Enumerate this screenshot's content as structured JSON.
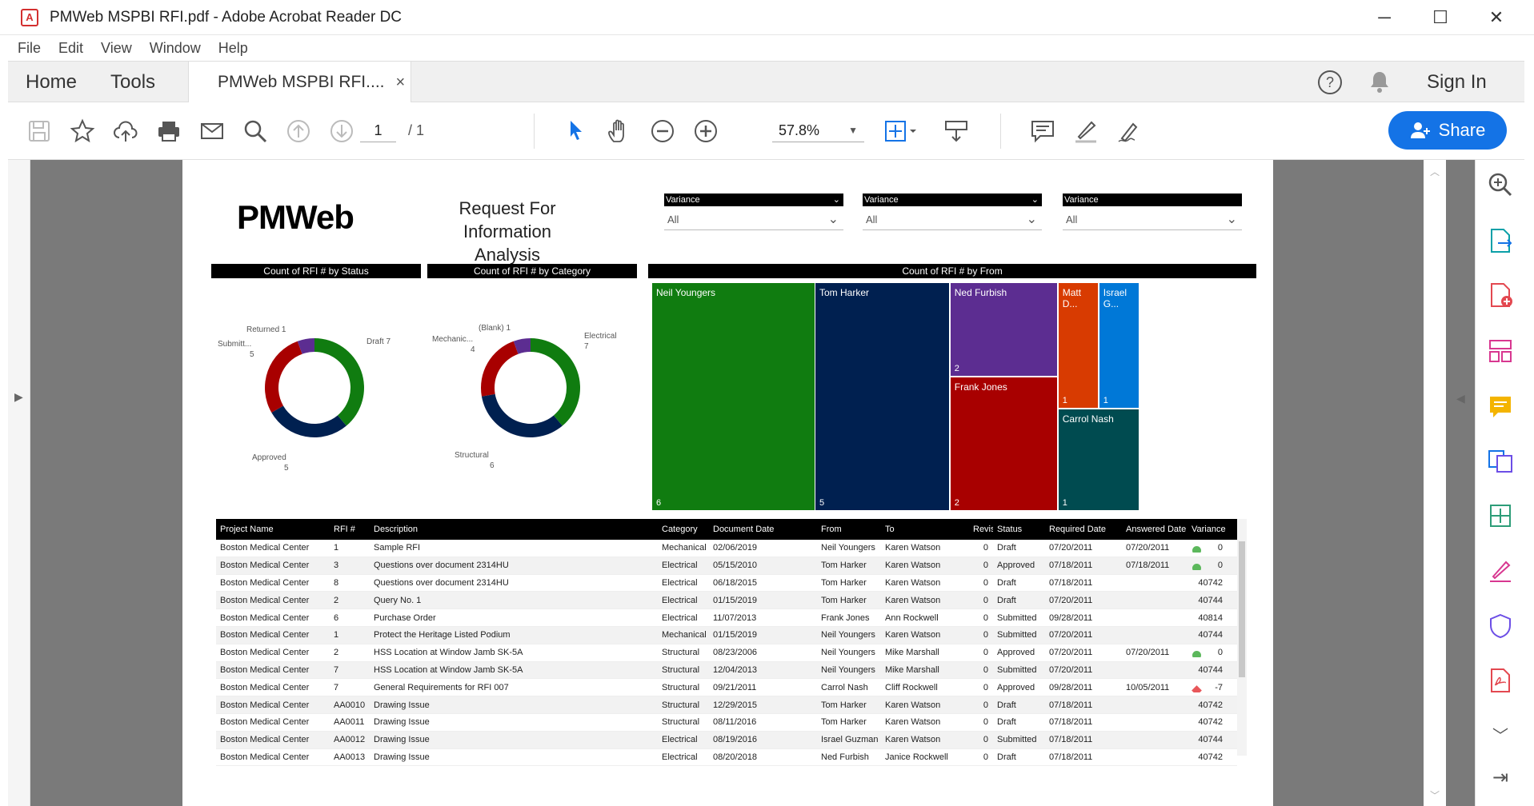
{
  "window": {
    "title": "PMWeb MSPBI RFI.pdf - Adobe Acrobat Reader DC",
    "minimize": "─",
    "maximize": "☐",
    "close": "✕"
  },
  "menu": [
    "File",
    "Edit",
    "View",
    "Window",
    "Help"
  ],
  "tabs": {
    "home": "Home",
    "tools": "Tools",
    "doc": "PMWeb MSPBI RFI....",
    "close": "×",
    "signin": "Sign In"
  },
  "toolbar": {
    "page_current": "1",
    "page_total": "/ 1",
    "zoom": "57.8%",
    "share": "Share"
  },
  "report": {
    "logo": "PMWeb",
    "title_line1": "Request For Information",
    "title_line2": "Analysis",
    "filters": [
      {
        "label": "Variance",
        "value": "All"
      },
      {
        "label": "Variance",
        "value": "All"
      },
      {
        "label": "Variance",
        "value": "All"
      }
    ],
    "status_title": "Count of RFI # by Status",
    "category_title": "Count of RFI # by Category",
    "from_title": "Count of RFI # by From",
    "status_labels": {
      "returned": "Returned 1",
      "submitted": "Submitt...",
      "submitted_v": "5",
      "draft": "Draft 7",
      "approved": "Approved",
      "approved_v": "5"
    },
    "category_labels": {
      "blank": "(Blank) 1",
      "mech": "Mechanic...",
      "mech_v": "4",
      "elec": "Electrical",
      "elec_v": "7",
      "struct": "Structural",
      "struct_v": "6"
    }
  },
  "chart_data": [
    {
      "type": "pie",
      "title": "Count of RFI # by Status",
      "categories": [
        "Draft",
        "Approved",
        "Submitted",
        "Returned"
      ],
      "values": [
        7,
        5,
        5,
        1
      ],
      "colors": [
        "#107c10",
        "#002050",
        "#a80000",
        "#5c2d91"
      ]
    },
    {
      "type": "pie",
      "title": "Count of RFI # by Category",
      "categories": [
        "Electrical",
        "Structural",
        "Mechanical",
        "(Blank)"
      ],
      "values": [
        7,
        6,
        4,
        1
      ],
      "colors": [
        "#107c10",
        "#002050",
        "#a80000",
        "#5c2d91"
      ]
    },
    {
      "type": "treemap",
      "title": "Count of RFI # by From",
      "categories": [
        "Neil Youngers",
        "Tom Harker",
        "Ned Furbish",
        "Frank Jones",
        "Matt D...",
        "Israel G...",
        "Carrol Nash"
      ],
      "values": [
        6,
        5,
        2,
        2,
        1,
        1,
        1
      ],
      "colors": [
        "#107c10",
        "#002050",
        "#5c2d91",
        "#a80000",
        "#d83b01",
        "#0078d7",
        "#004b50"
      ]
    }
  ],
  "table": {
    "headers": [
      "Project Name",
      "RFI #",
      "Description",
      "Category",
      "Document Date",
      "From",
      "To",
      "Revision",
      "Status",
      "Required Date",
      "Answered Date",
      "Variance"
    ],
    "rows": [
      [
        "Boston Medical Center",
        "1",
        "Sample RFI",
        "Mechanical",
        "02/06/2019",
        "Neil Youngers",
        "Karen Watson",
        "0",
        "Draft",
        "07/20/2011",
        "07/20/2011",
        "0"
      ],
      [
        "Boston Medical Center",
        "3",
        "Questions over document 2314HU",
        "Electrical",
        "05/15/2010",
        "Tom Harker",
        "Karen Watson",
        "0",
        "Approved",
        "07/18/2011",
        "07/18/2011",
        "0"
      ],
      [
        "Boston Medical Center",
        "8",
        "Questions over document 2314HU",
        "Electrical",
        "06/18/2015",
        "Tom Harker",
        "Karen Watson",
        "0",
        "Draft",
        "07/18/2011",
        "",
        "40742"
      ],
      [
        "Boston Medical Center",
        "2",
        "Query No. 1",
        "Electrical",
        "01/15/2019",
        "Tom Harker",
        "Karen Watson",
        "0",
        "Draft",
        "07/20/2011",
        "",
        "40744"
      ],
      [
        "Boston Medical Center",
        "6",
        "Purchase Order",
        "Electrical",
        "11/07/2013",
        "Frank Jones",
        "Ann Rockwell",
        "0",
        "Submitted",
        "09/28/2011",
        "",
        "40814"
      ],
      [
        "Boston Medical Center",
        "1",
        "Protect the Heritage Listed Podium",
        "Mechanical",
        "01/15/2019",
        "Neil Youngers",
        "Karen Watson",
        "0",
        "Submitted",
        "07/20/2011",
        "",
        "40744"
      ],
      [
        "Boston Medical Center",
        "2",
        "HSS Location at Window Jamb SK-5A",
        "Structural",
        "08/23/2006",
        "Neil Youngers",
        "Mike Marshall",
        "0",
        "Approved",
        "07/20/2011",
        "07/20/2011",
        "0"
      ],
      [
        "Boston Medical Center",
        "7",
        "HSS Location at Window Jamb SK-5A",
        "Structural",
        "12/04/2013",
        "Neil Youngers",
        "Mike Marshall",
        "0",
        "Submitted",
        "07/20/2011",
        "",
        "40744"
      ],
      [
        "Boston Medical Center",
        "7",
        "General Requirements for RFI 007",
        "Structural",
        "09/21/2011",
        "Carrol Nash",
        "Cliff Rockwell",
        "0",
        "Approved",
        "09/28/2011",
        "10/05/2011",
        "-7"
      ],
      [
        "Boston Medical Center",
        "AA0010",
        "Drawing Issue",
        "Structural",
        "12/29/2015",
        "Tom Harker",
        "Karen Watson",
        "0",
        "Draft",
        "07/18/2011",
        "",
        "40742"
      ],
      [
        "Boston Medical Center",
        "AA0011",
        "Drawing Issue",
        "Structural",
        "08/11/2016",
        "Tom Harker",
        "Karen Watson",
        "0",
        "Draft",
        "07/18/2011",
        "",
        "40742"
      ],
      [
        "Boston Medical Center",
        "AA0012",
        "Drawing Issue",
        "Electrical",
        "08/19/2016",
        "Israel Guzman",
        "Karen Watson",
        "0",
        "Submitted",
        "07/18/2011",
        "",
        "40744"
      ],
      [
        "Boston Medical Center",
        "AA0013",
        "Drawing Issue",
        "Electrical",
        "08/20/2018",
        "Ned Furbish",
        "Janice Rockwell",
        "0",
        "Draft",
        "07/18/2011",
        "",
        "40742"
      ]
    ],
    "indicators": [
      "green",
      "green",
      "",
      "",
      "",
      "",
      "green",
      "",
      "red",
      "",
      "",
      "",
      ""
    ]
  }
}
